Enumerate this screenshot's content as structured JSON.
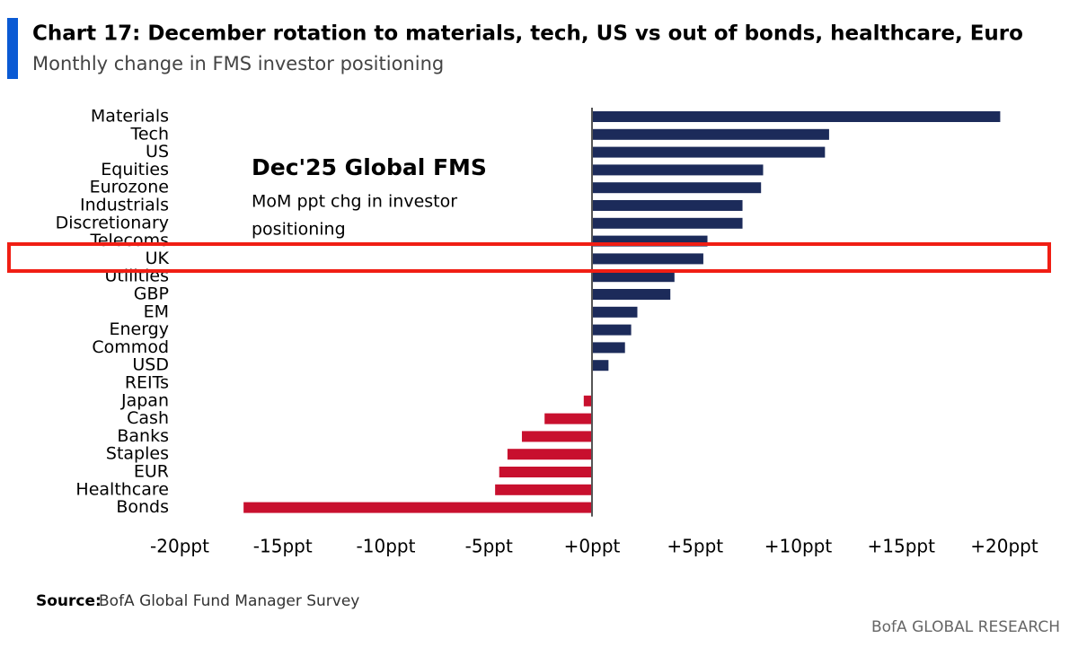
{
  "chart_data": {
    "type": "hbar",
    "title": "Chart 17: December rotation to materials, tech, US vs out of bonds, healthcare, Euro",
    "subtitle": "Monthly change in FMS investor positioning",
    "annotation": {
      "title": "Dec'25 Global FMS",
      "lines": [
        "MoM ppt chg in investor",
        "positioning"
      ]
    },
    "categories": [
      "Materials",
      "Tech",
      "US",
      "Equities",
      "Eurozone",
      "Industrials",
      "Discretionary",
      "Telecoms",
      "UK",
      "Utilities",
      "GBP",
      "EM",
      "Energy",
      "Commod",
      "USD",
      "REITs",
      "Japan",
      "Cash",
      "Banks",
      "Staples",
      "EUR",
      "Healthcare",
      "Bonds"
    ],
    "values": [
      19.8,
      11.5,
      11.3,
      8.3,
      8.2,
      7.3,
      7.3,
      5.6,
      5.4,
      4.0,
      3.8,
      2.2,
      1.9,
      1.6,
      0.8,
      0,
      -0.4,
      -2.3,
      -3.4,
      -4.1,
      -4.5,
      -4.7,
      -16.9
    ],
    "color_positive": "#1c2b5a",
    "color_negative": "#c8102e",
    "xlim": [
      -20,
      20
    ],
    "xticks": [
      {
        "value": -20,
        "label": "-20ppt"
      },
      {
        "value": -15,
        "label": "-15ppt"
      },
      {
        "value": -10,
        "label": "-10ppt"
      },
      {
        "value": -5,
        "label": "-5ppt"
      },
      {
        "value": 0,
        "label": "+0ppt"
      },
      {
        "value": 5,
        "label": "+5ppt"
      },
      {
        "value": 10,
        "label": "+10ppt"
      },
      {
        "value": 15,
        "label": "+15ppt"
      },
      {
        "value": 20,
        "label": "+20ppt"
      }
    ],
    "source_label": "Source:",
    "source": "BofA Global Fund Manager Survey",
    "footer": "BofA GLOBAL RESEARCH"
  }
}
